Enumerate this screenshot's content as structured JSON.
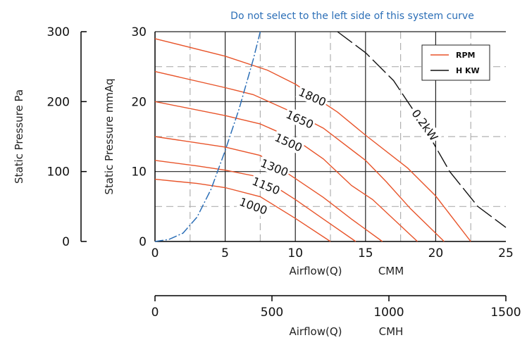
{
  "chart_data": {
    "type": "line",
    "title": "",
    "note": "Do not select to the left side of this system curve",
    "xlabel": "Airflow(Q)",
    "xunit": "CMM",
    "x2label": "Airflow(Q)",
    "x2unit": "CMH",
    "ylabel": "Static Pressure",
    "yunit": "mmAq",
    "y2label": "Static Pressure",
    "y2unit": "Pa",
    "xlim": [
      0,
      25
    ],
    "ylim": [
      0,
      30
    ],
    "x2lim": [
      0,
      1500
    ],
    "y2lim": [
      0,
      300
    ],
    "xticks": [
      0,
      5,
      10,
      15,
      20,
      25
    ],
    "yticks": [
      0,
      10,
      20,
      30
    ],
    "x2ticks": [
      0,
      500,
      1000,
      1500
    ],
    "y2ticks": [
      0,
      100,
      200,
      300
    ],
    "grid": true,
    "legend_position": "top-right",
    "legend": [
      "RPM",
      "H KW"
    ],
    "colors": {
      "rpm": "#e8542a",
      "kw": "#111111",
      "system": "#2c6fb7",
      "note": "#2c6fb7"
    },
    "rpm_series": [
      {
        "name": "1800",
        "points": [
          [
            0,
            29
          ],
          [
            5,
            26.5
          ],
          [
            8,
            24.5
          ],
          [
            10,
            22.5
          ],
          [
            13,
            18.5
          ],
          [
            15,
            15.2
          ],
          [
            18,
            10.5
          ],
          [
            20,
            6.5
          ],
          [
            22.5,
            0
          ]
        ]
      },
      {
        "name": "1650",
        "points": [
          [
            0,
            24.3
          ],
          [
            5,
            22
          ],
          [
            7,
            21
          ],
          [
            10,
            18.3
          ],
          [
            12,
            16.2
          ],
          [
            15,
            11.6
          ],
          [
            16.5,
            8.5
          ],
          [
            18.2,
            4.7
          ],
          [
            20.6,
            0
          ]
        ]
      },
      {
        "name": "1500",
        "points": [
          [
            0,
            20
          ],
          [
            5,
            18
          ],
          [
            7.5,
            16.8
          ],
          [
            10,
            14.6
          ],
          [
            12,
            11.8
          ],
          [
            14,
            8
          ],
          [
            15.5,
            6
          ],
          [
            18.7,
            0
          ]
        ]
      },
      {
        "name": "1300",
        "points": [
          [
            0,
            15
          ],
          [
            5,
            13.5
          ],
          [
            7.5,
            12.3
          ],
          [
            10,
            9
          ],
          [
            12,
            6.3
          ],
          [
            14,
            3.2
          ],
          [
            16.2,
            0
          ]
        ]
      },
      {
        "name": "1150",
        "points": [
          [
            0,
            11.6
          ],
          [
            3,
            10.8
          ],
          [
            5,
            10.2
          ],
          [
            7.5,
            9.2
          ],
          [
            10,
            6
          ],
          [
            12,
            3.2
          ],
          [
            14.3,
            0
          ]
        ]
      },
      {
        "name": "1000",
        "points": [
          [
            0,
            8.9
          ],
          [
            3,
            8.3
          ],
          [
            5,
            7.7
          ],
          [
            7.5,
            6.4
          ],
          [
            10,
            3.3
          ],
          [
            12.5,
            0
          ]
        ]
      }
    ],
    "kw_series": [
      {
        "name": "0.2kW",
        "points": [
          [
            13,
            30
          ],
          [
            15,
            27
          ],
          [
            17,
            23
          ],
          [
            19,
            17
          ],
          [
            21,
            10
          ],
          [
            23,
            5
          ],
          [
            25,
            2
          ]
        ]
      }
    ],
    "system_curve": [
      [
        0,
        0
      ],
      [
        1,
        0.3
      ],
      [
        2,
        1.2
      ],
      [
        3,
        3.5
      ],
      [
        4,
        7.5
      ],
      [
        5,
        13
      ],
      [
        6,
        19
      ],
      [
        7,
        26
      ],
      [
        7.5,
        30
      ]
    ],
    "curve_labels": [
      {
        "text": "1800",
        "x": 11.2,
        "y": 20.6,
        "angle": 24
      },
      {
        "text": "1650",
        "x": 10.3,
        "y": 17.4,
        "angle": 24
      },
      {
        "text": "1500",
        "x": 9.5,
        "y": 14.1,
        "angle": 24
      },
      {
        "text": "1300",
        "x": 8.5,
        "y": 10.5,
        "angle": 22
      },
      {
        "text": "1150",
        "x": 7.9,
        "y": 7.9,
        "angle": 22
      },
      {
        "text": "1000",
        "x": 7.0,
        "y": 5.0,
        "angle": 20
      },
      {
        "text": "0.2kW",
        "x": 19.2,
        "y": 16.6,
        "angle": 54
      }
    ]
  }
}
